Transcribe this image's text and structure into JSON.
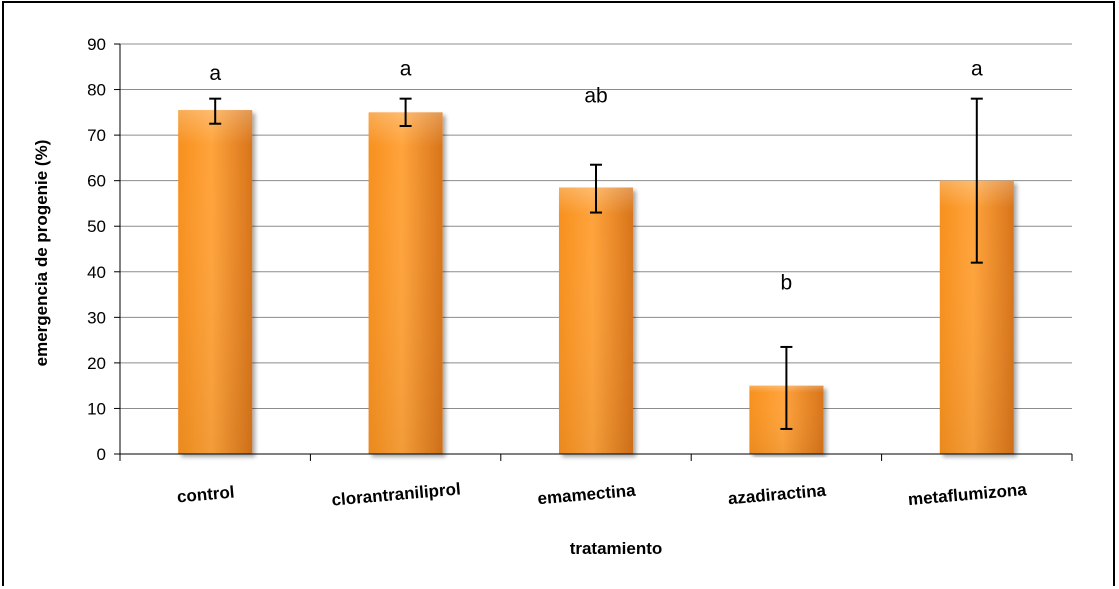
{
  "chart_data": {
    "type": "bar",
    "title": "",
    "xlabel": "tratamiento",
    "ylabel": "emergencia de progenie (%)",
    "ylim": [
      0,
      90
    ],
    "yticks": [
      0,
      10,
      20,
      30,
      40,
      50,
      60,
      70,
      80,
      90
    ],
    "grid": true,
    "categories": [
      "control",
      "clorantraniliprol",
      "emamectina",
      "azadiractina",
      "metaflumizona"
    ],
    "values": [
      75.5,
      75,
      58.5,
      15,
      60
    ],
    "error_low": [
      72.5,
      72,
      53,
      5.5,
      42
    ],
    "error_high": [
      78,
      78,
      63.5,
      23.5,
      78
    ],
    "significance_letters": [
      "a",
      "a",
      "ab",
      "b",
      "a"
    ],
    "letter_heights": [
      83,
      84,
      78,
      37,
      84
    ],
    "colors": {
      "bar_light": "#FFA43C",
      "bar_mid": "#F7901E",
      "bar_dark": "#D8741A",
      "grid": "#8c8c8c",
      "axis": "#000000"
    }
  }
}
